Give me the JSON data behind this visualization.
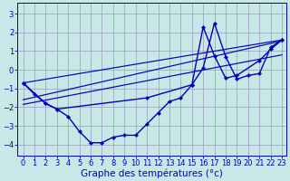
{
  "background_color": "#c8e8e8",
  "grid_color": "#9999bb",
  "line_color": "#0000bb",
  "xlabel": "Graphe des températures (°c)",
  "xlabel_color": "#0000aa",
  "xlabel_fontsize": 7.5,
  "tick_fontsize": 6,
  "tick_color": "#0000aa",
  "xlim_min": -0.5,
  "xlim_max": 23.4,
  "ylim_min": -4.6,
  "ylim_max": 3.6,
  "yticks": [
    -4,
    -3,
    -2,
    -1,
    0,
    1,
    2,
    3
  ],
  "xticks": [
    0,
    1,
    2,
    3,
    4,
    5,
    6,
    7,
    8,
    9,
    10,
    11,
    12,
    13,
    14,
    15,
    16,
    17,
    18,
    19,
    20,
    21,
    22,
    23
  ],
  "line1_x": [
    0,
    1,
    2,
    3,
    4,
    5,
    6,
    7,
    8,
    9,
    10,
    11,
    12,
    13,
    14,
    15,
    16,
    17,
    18,
    19,
    20,
    21,
    22,
    23
  ],
  "line1_y": [
    -0.7,
    -1.3,
    -1.8,
    -2.1,
    -2.5,
    -3.3,
    -3.9,
    -3.9,
    -3.6,
    -3.5,
    -3.5,
    -2.9,
    -2.3,
    -1.7,
    -1.5,
    -0.8,
    0.1,
    2.5,
    0.7,
    -0.5,
    -0.3,
    -0.2,
    1.2,
    1.6
  ],
  "line2_x": [
    0,
    2,
    3,
    11,
    15,
    16,
    17,
    18,
    19,
    21,
    22,
    23
  ],
  "line2_y": [
    -0.7,
    -1.8,
    -2.1,
    -1.5,
    -0.8,
    2.3,
    0.75,
    -0.45,
    -0.3,
    0.5,
    1.1,
    1.6
  ],
  "trend1_x": [
    0,
    23
  ],
  "trend1_y": [
    -0.7,
    1.6
  ],
  "trend2_x": [
    0,
    23
  ],
  "trend2_y": [
    -1.6,
    1.55
  ],
  "trend3_x": [
    0,
    23
  ],
  "trend3_y": [
    -1.85,
    0.8
  ]
}
